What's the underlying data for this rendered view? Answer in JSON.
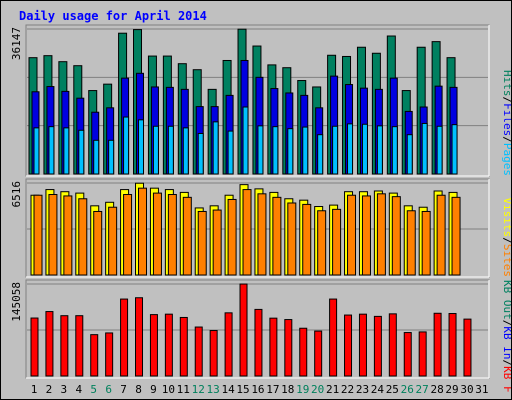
{
  "chart_data": {
    "type": "bar",
    "title": "Daily usage for April 2014",
    "days": [
      "1",
      "2",
      "3",
      "4",
      "5",
      "6",
      "7",
      "8",
      "9",
      "10",
      "11",
      "12",
      "13",
      "14",
      "15",
      "16",
      "17",
      "18",
      "19",
      "20",
      "21",
      "22",
      "23",
      "24",
      "25",
      "26",
      "27",
      "28",
      "29",
      "30",
      "31"
    ],
    "weekend_days": [
      "5",
      "6",
      "12",
      "13",
      "19",
      "20",
      "26",
      "27"
    ],
    "panels": [
      {
        "id": "hits",
        "max_label": "36147",
        "ylim": [
          0,
          36147
        ],
        "legend": [
          {
            "label": "Pages",
            "color": "#00c0ff"
          },
          {
            "label": "Files",
            "color": "#0000ff"
          },
          {
            "label": "Hits",
            "color": "#00805c"
          }
        ],
        "series": [
          {
            "name": "Hits",
            "color": "#008060",
            "values": [
              29000,
              29500,
              28000,
              27000,
              20800,
              22400,
              35100,
              36000,
              29400,
              29400,
              27500,
              26000,
              21100,
              28300,
              36100,
              31900,
              27200,
              26500,
              23300,
              21700,
              29600,
              29300,
              31600,
              30100,
              34400,
              20800,
              31600,
              33000,
              29000,
              0,
              0
            ]
          },
          {
            "name": "Files",
            "color": "#0000e0",
            "values": [
              20500,
              21800,
              20600,
              18900,
              15400,
              16500,
              23900,
              25100,
              21700,
              21600,
              21100,
              16800,
              16800,
              19600,
              28300,
              24100,
              21300,
              20200,
              19600,
              16500,
              24400,
              22300,
              21400,
              21100,
              23900,
              15600,
              16700,
              21900,
              21600,
              0,
              0
            ]
          },
          {
            "name": "Pages",
            "color": "#00c0ff",
            "values": [
              11500,
              11800,
              11500,
              10900,
              8400,
              8400,
              14200,
              13500,
              11900,
              11900,
              11500,
              10100,
              13000,
              10700,
              16700,
              12000,
              11800,
              11300,
              11700,
              9800,
              11900,
              12500,
              12400,
              12000,
              11800,
              9800,
              12600,
              11900,
              12300,
              0,
              0
            ]
          }
        ]
      },
      {
        "id": "visits",
        "max_label": "6516",
        "ylim": [
          0,
          6516
        ],
        "legend": [
          {
            "label": "Sites",
            "color": "#ff8000"
          },
          {
            "label": "Visits",
            "color": "#ffff00"
          }
        ],
        "series": [
          {
            "name": "Visits",
            "color": "#ffff00",
            "values": [
              5650,
              6050,
              5900,
              5800,
              4900,
              5150,
              6050,
              6500,
              6150,
              6050,
              5850,
              4750,
              4900,
              5650,
              6400,
              6100,
              5850,
              5400,
              5300,
              4850,
              4950,
              5900,
              5900,
              5950,
              5800,
              4900,
              4800,
              5950,
              5850,
              0,
              0
            ]
          },
          {
            "name": "Sites",
            "color": "#ff8000",
            "values": [
              5650,
              5700,
              5600,
              5400,
              4500,
              4800,
              5700,
              6150,
              5800,
              5700,
              5500,
              4500,
              4600,
              5350,
              6050,
              5750,
              5500,
              5100,
              5000,
              4550,
              4650,
              5650,
              5600,
              5750,
              5550,
              4550,
              4500,
              5650,
              5500,
              0,
              0
            ]
          }
        ]
      },
      {
        "id": "kbytes",
        "max_label": "145058",
        "ylim": [
          0,
          145058
        ],
        "legend": [
          {
            "label": "KB F",
            "color": "#ff0000"
          },
          {
            "label": "KB In",
            "color": "#0000ff"
          },
          {
            "label": "KB Out",
            "color": "#008060"
          }
        ],
        "series": [
          {
            "name": "KB F",
            "color": "#ff0000",
            "values": [
              91400,
              101600,
              95100,
              95100,
              65200,
              67900,
              121300,
              123400,
              96800,
              97500,
              92300,
              77200,
              71700,
              99600,
              145000,
              105000,
              91200,
              89000,
              75300,
              70800,
              121300,
              96100,
              97500,
              94000,
              98000,
              68500,
              69500,
              98900,
              98500,
              89700,
              0
            ]
          }
        ]
      }
    ]
  }
}
